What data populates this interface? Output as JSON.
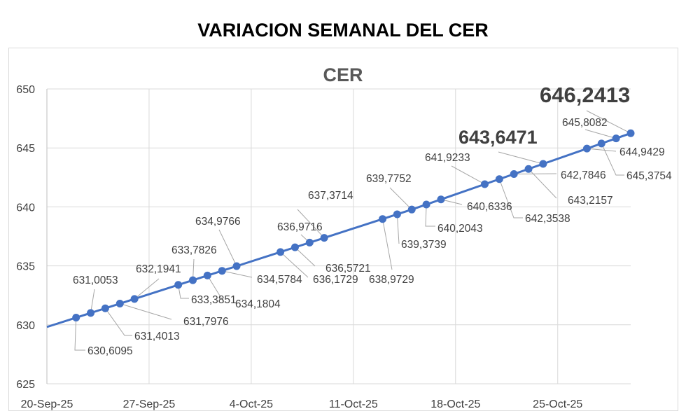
{
  "page_title": "VARIACION SEMANAL DEL CER",
  "chart_data": {
    "type": "line",
    "title": "CER",
    "xlabel": "",
    "ylabel": "",
    "ylim": [
      625,
      650
    ],
    "yticks": [
      "625",
      "630",
      "635",
      "640",
      "645",
      "650"
    ],
    "xlim": [
      "2025-09-20",
      "2025-10-30"
    ],
    "xticks": [
      "20-Sep-25",
      "27-Sep-25",
      "4-Oct-25",
      "11-Oct-25",
      "18-Oct-25",
      "25-Oct-25"
    ],
    "grid": true,
    "legend": "none",
    "color": "#4472C4",
    "x": [
      "2025-09-22",
      "2025-09-23",
      "2025-09-24",
      "2025-09-25",
      "2025-09-26",
      "2025-09-29",
      "2025-09-30",
      "2025-10-01",
      "2025-10-02",
      "2025-10-03",
      "2025-10-06",
      "2025-10-07",
      "2025-10-08",
      "2025-10-09",
      "2025-10-13",
      "2025-10-14",
      "2025-10-15",
      "2025-10-16",
      "2025-10-17",
      "2025-10-20",
      "2025-10-21",
      "2025-10-22",
      "2025-10-23",
      "2025-10-24",
      "2025-10-27",
      "2025-10-28",
      "2025-10-29",
      "2025-10-30"
    ],
    "values": [
      630.6095,
      631.0053,
      631.4013,
      631.7976,
      632.1941,
      633.3851,
      633.7826,
      634.1804,
      634.5784,
      634.9766,
      636.1729,
      636.5721,
      636.9716,
      637.3714,
      638.9729,
      639.3739,
      639.7752,
      640.2043,
      640.6336,
      641.9233,
      642.3538,
      642.7846,
      643.2157,
      643.6471,
      644.9429,
      645.3754,
      645.8082,
      646.2413
    ],
    "labels": [
      "630,6095",
      "631,0053",
      "631,4013",
      "631,7976",
      "632,1941",
      "633,3851",
      "633,7826",
      "634,1804",
      "634,5784",
      "634,9766",
      "636,1729",
      "636,5721",
      "636,9716",
      "637,3714",
      "638,9729",
      "639,3739",
      "639,7752",
      "640,2043",
      "640,6336",
      "641,9233",
      "642,3538",
      "642,7846",
      "643,2157",
      "643,6471",
      "644,9429",
      "645,3754",
      "645,8082",
      "646,2413"
    ],
    "highlighted_labels": [
      "643,6471",
      "646,2413"
    ]
  }
}
